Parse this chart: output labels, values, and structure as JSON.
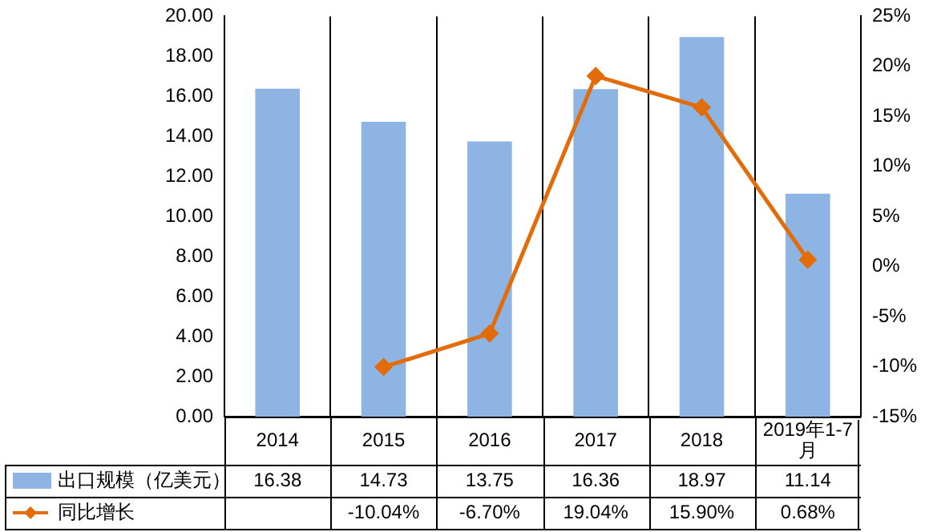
{
  "chart_data": {
    "type": "bar",
    "categories": [
      "2014",
      "2015",
      "2016",
      "2017",
      "2018",
      "2019年1-7月"
    ],
    "series": [
      {
        "name": "出口规模（亿美元）",
        "color": "#8db4e2",
        "values": [
          16.38,
          14.73,
          13.75,
          16.36,
          18.97,
          11.14
        ],
        "value_labels": [
          "16.38",
          "14.73",
          "13.75",
          "16.36",
          "18.97",
          "11.14"
        ]
      },
      {
        "name": "同比增长",
        "type": "line",
        "axis": "y2",
        "color": "#e36c0a",
        "values": [
          null,
          -10.04,
          -6.7,
          19.04,
          15.9,
          0.68
        ],
        "value_labels": [
          null,
          "-10.04%",
          "-6.70%",
          "19.04%",
          "15.90%",
          "0.68%"
        ]
      }
    ],
    "ylim": [
      0,
      20
    ],
    "yticks": [
      {
        "value": 0,
        "label": "0.00"
      },
      {
        "value": 2,
        "label": "2.00"
      },
      {
        "value": 4,
        "label": "4.00"
      },
      {
        "value": 6,
        "label": "6.00"
      },
      {
        "value": 8,
        "label": "8.00"
      },
      {
        "value": 10,
        "label": "10.00"
      },
      {
        "value": 12,
        "label": "12.00"
      },
      {
        "value": 14,
        "label": "14.00"
      },
      {
        "value": 16,
        "label": "16.00"
      },
      {
        "value": 18,
        "label": "18.00"
      },
      {
        "value": 20,
        "label": "20.00"
      }
    ],
    "y2lim": [
      -15,
      25
    ],
    "y2ticks": [
      {
        "value": -15,
        "label": "-15%"
      },
      {
        "value": -10,
        "label": "-10%"
      },
      {
        "value": -5,
        "label": "-5%"
      },
      {
        "value": 0,
        "label": "0%"
      },
      {
        "value": 5,
        "label": "5%"
      },
      {
        "value": 10,
        "label": "10%"
      },
      {
        "value": 15,
        "label": "15%"
      },
      {
        "value": 20,
        "label": "20%"
      },
      {
        "value": 25,
        "label": "25%"
      }
    ],
    "grid": "x",
    "legend": "bottom left",
    "marker": "diamond",
    "line_style": "solid"
  }
}
